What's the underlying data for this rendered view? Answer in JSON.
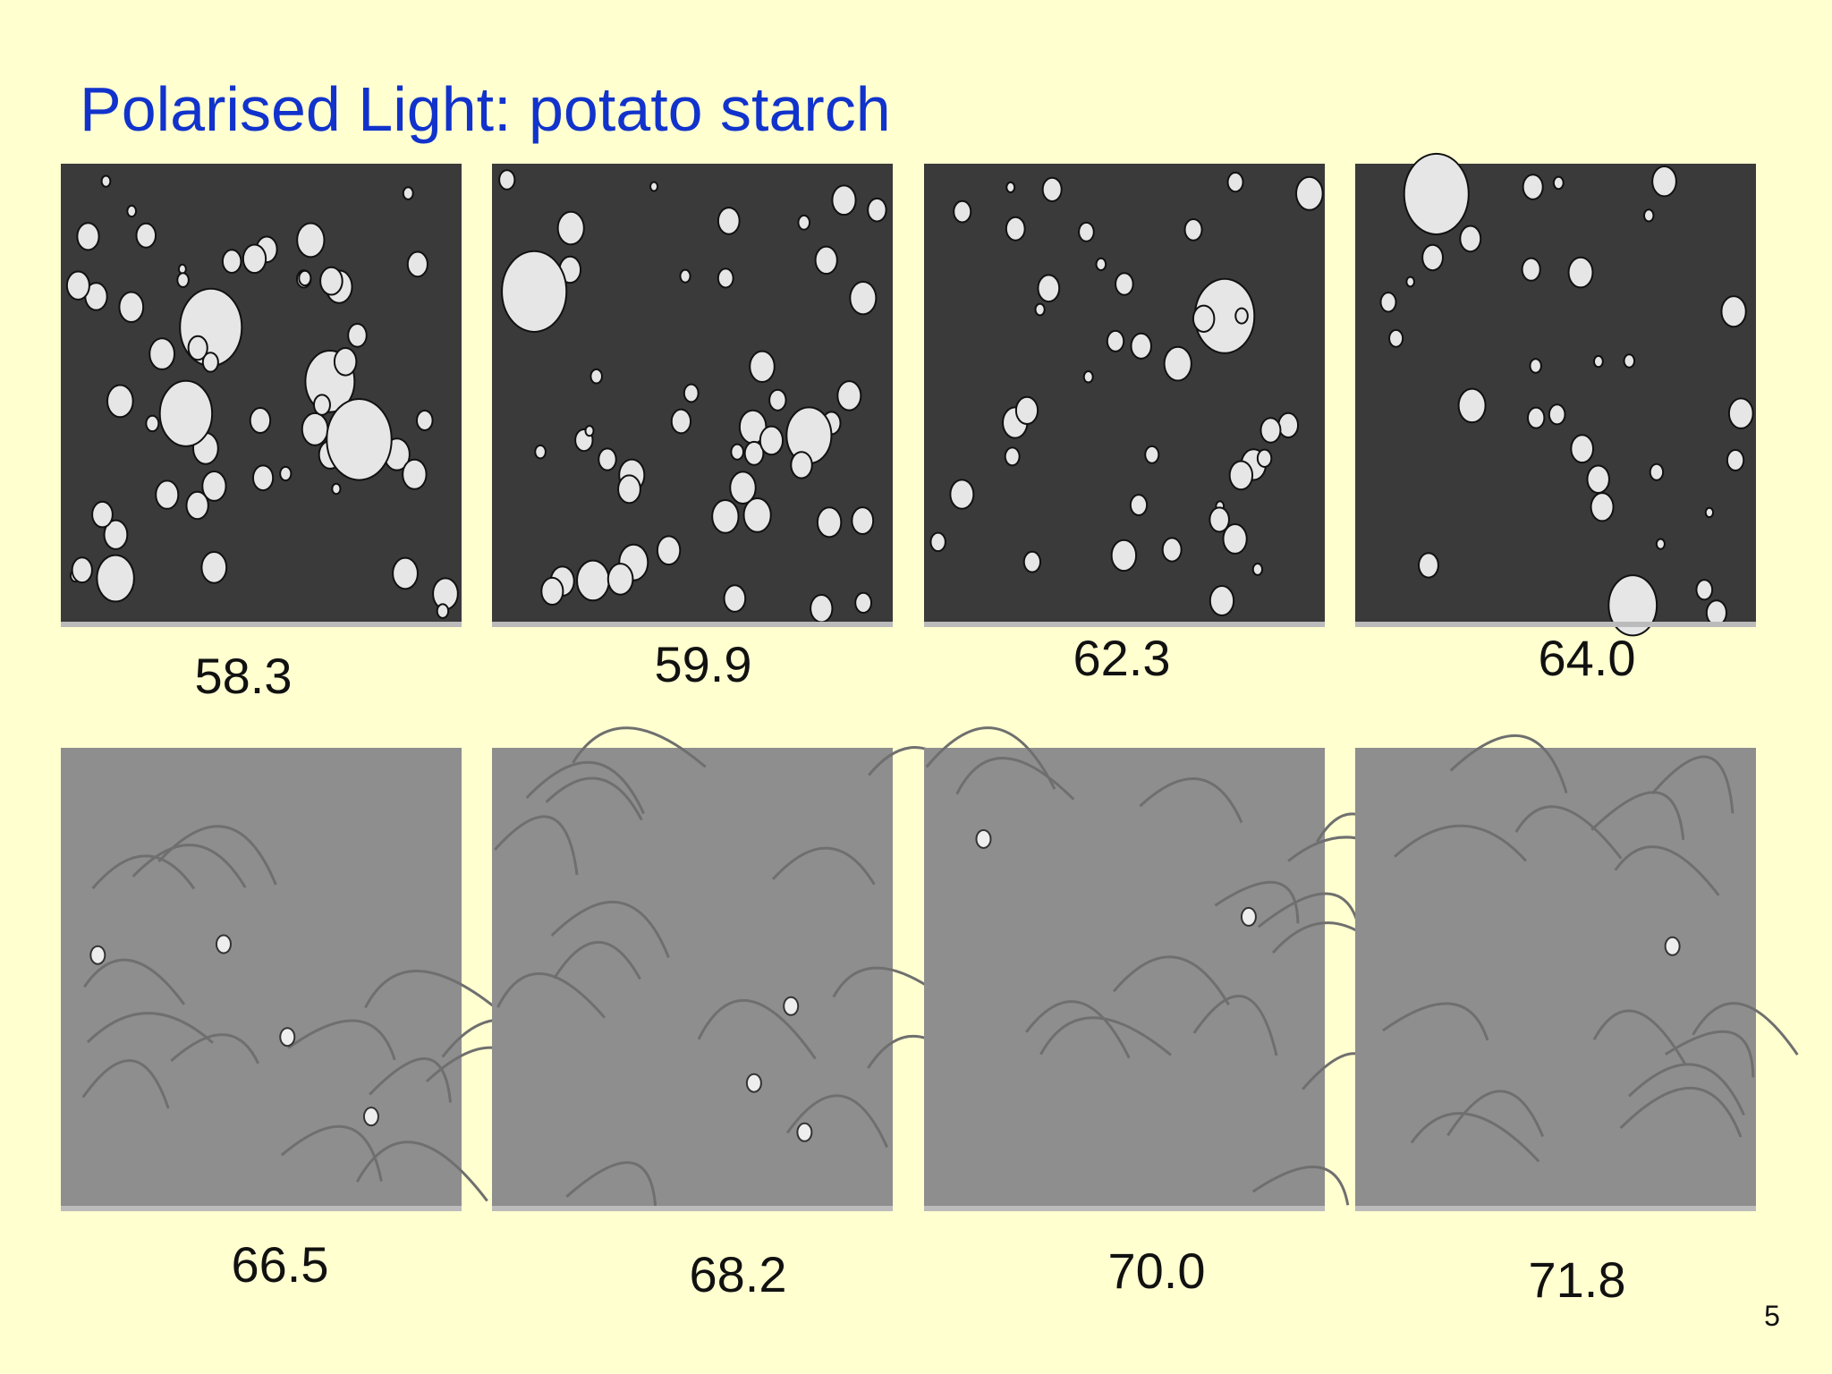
{
  "header": {
    "title": "Polarised Light:  potato starch"
  },
  "panels": [
    {
      "label": "58.3"
    },
    {
      "label": "59.9"
    },
    {
      "label": "62.3"
    },
    {
      "label": "64.0"
    },
    {
      "label": "66.5"
    },
    {
      "label": "68.2"
    },
    {
      "label": "70.0"
    },
    {
      "label": "71.8"
    }
  ],
  "footer": {
    "page_number": "5"
  }
}
